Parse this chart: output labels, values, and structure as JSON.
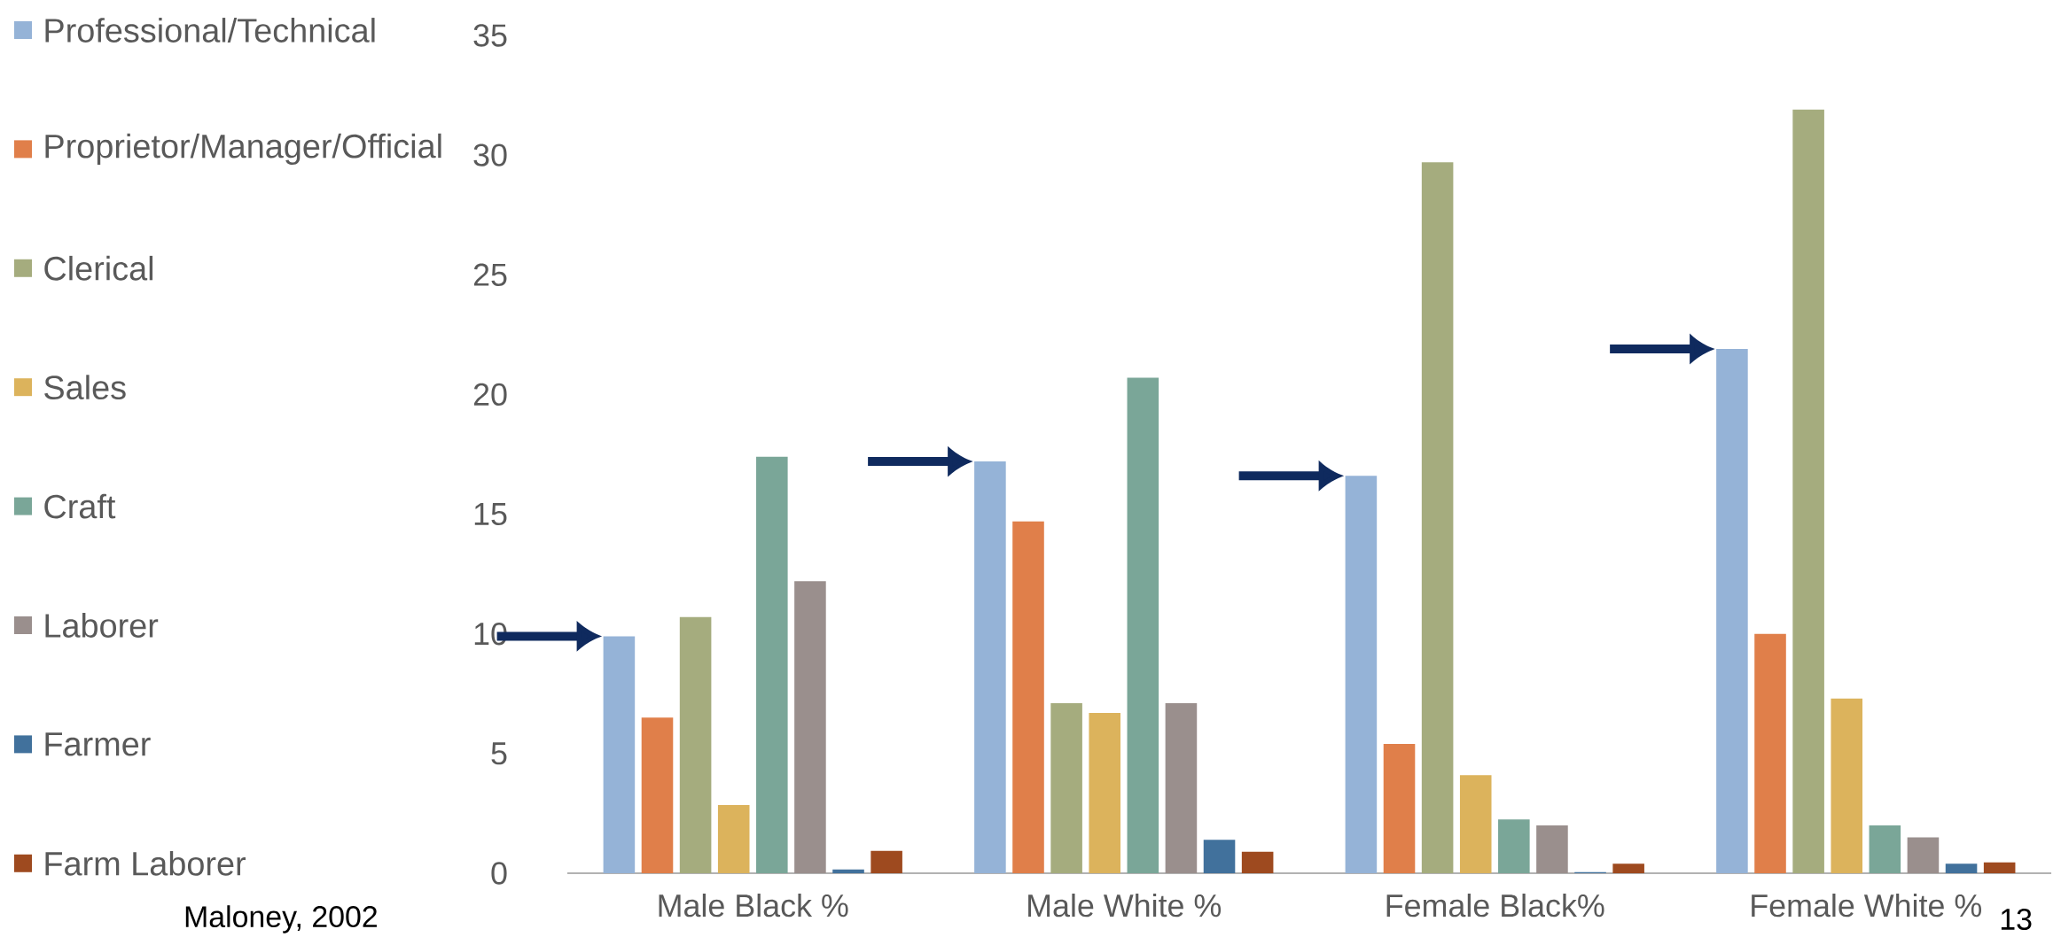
{
  "chart_data": {
    "type": "bar",
    "categories": [
      "Male Black %",
      "Male White %",
      "Female  Black%",
      "Female White %"
    ],
    "series": [
      {
        "name": "Professional/Technical",
        "color": "#95b3d7",
        "values": [
          9.9,
          17.2,
          16.6,
          21.9
        ]
      },
      {
        "name": "Proprietor/Manager/Official",
        "color": "#e07f4a",
        "values": [
          6.5,
          14.7,
          5.4,
          10.0
        ]
      },
      {
        "name": "Clerical",
        "color": "#a5ac7e",
        "values": [
          10.7,
          7.1,
          29.7,
          31.9
        ]
      },
      {
        "name": "Sales",
        "color": "#dcb35c",
        "values": [
          2.85,
          6.7,
          4.1,
          7.3
        ]
      },
      {
        "name": "Craft",
        "color": "#7aa698",
        "values": [
          17.4,
          20.7,
          2.25,
          2.0
        ]
      },
      {
        "name": "Laborer",
        "color": "#9a8f8d",
        "values": [
          12.2,
          7.1,
          2.0,
          1.5
        ]
      },
      {
        "name": "Farmer",
        "color": "#41719c",
        "values": [
          0.16,
          1.4,
          0.05,
          0.4
        ]
      },
      {
        "name": "Farm Laborer",
        "color": "#9e4a1f",
        "values": [
          0.93,
          0.9,
          0.4,
          0.45
        ]
      }
    ],
    "ylim": [
      0,
      35
    ],
    "yticks": [
      0,
      5,
      10,
      15,
      20,
      25,
      30,
      35
    ],
    "legend": "left",
    "annotations": [
      "Maloney, 2002",
      "13"
    ]
  }
}
